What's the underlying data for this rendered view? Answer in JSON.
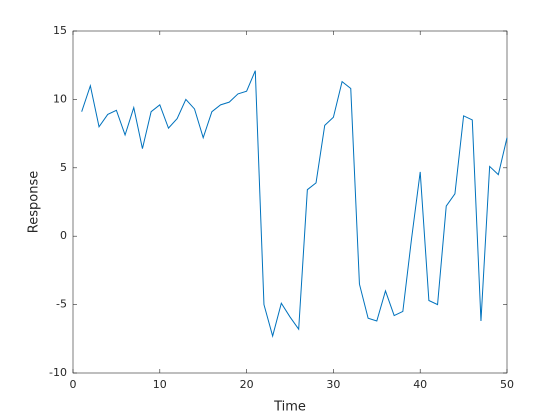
{
  "chart_data": {
    "type": "line",
    "xlabel": "Time",
    "ylabel": "Response",
    "x": [
      1,
      2,
      3,
      4,
      5,
      6,
      7,
      8,
      9,
      10,
      11,
      12,
      13,
      14,
      15,
      16,
      17,
      18,
      19,
      20,
      21,
      22,
      23,
      24,
      25,
      26,
      27,
      28,
      29,
      30,
      31,
      32,
      33,
      34,
      35,
      36,
      37,
      38,
      39,
      40,
      41,
      42,
      43,
      44,
      45,
      46,
      47,
      48,
      49,
      50
    ],
    "values": [
      9.1,
      11.0,
      8.0,
      8.9,
      9.2,
      7.4,
      9.4,
      6.4,
      9.1,
      9.6,
      7.9,
      8.6,
      10.0,
      9.3,
      7.2,
      9.1,
      9.6,
      9.8,
      10.4,
      10.6,
      12.1,
      -5.0,
      -7.3,
      -4.9,
      -5.9,
      -6.8,
      3.4,
      3.9,
      8.1,
      8.7,
      11.3,
      10.8,
      -3.5,
      -6.0,
      -6.2,
      -4.0,
      -5.8,
      -5.5,
      -0.2,
      4.7,
      -4.7,
      -5.0,
      2.2,
      3.1,
      8.8,
      8.5,
      -6.2,
      5.1,
      4.5,
      7.2
    ],
    "color": "#0072bd",
    "xlim": [
      0,
      50
    ],
    "xticks": [
      0,
      10,
      20,
      30,
      40,
      50
    ],
    "ylim": [
      -10,
      15
    ],
    "yticks": [
      -10,
      -5,
      0,
      5,
      10,
      15
    ]
  }
}
